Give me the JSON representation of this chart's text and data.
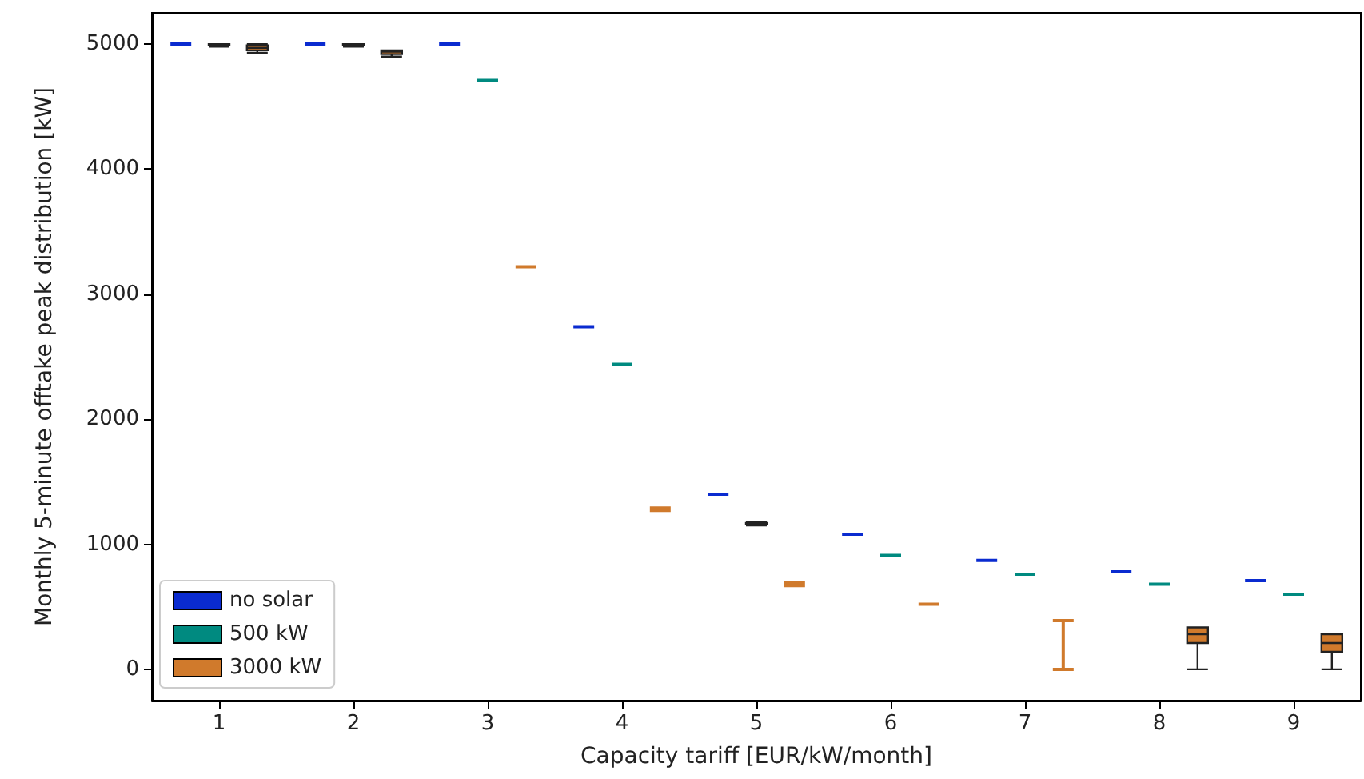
{
  "chart_data": {
    "type": "box",
    "xlabel": "Capacity tariff [EUR/kW/month]",
    "ylabel": "Monthly 5-minute offtake peak distribution [kW]",
    "categories": [
      "1",
      "2",
      "3",
      "4",
      "5",
      "6",
      "7",
      "8",
      "9"
    ],
    "ylim": [
      -250,
      5250
    ],
    "yticks": [
      0,
      1000,
      2000,
      3000,
      4000,
      5000
    ],
    "grid": false,
    "legend": "bottom left",
    "series": [
      {
        "name": "no solar",
        "color": "#0a2bd0",
        "boxes": [
          {
            "low": 5000,
            "q1": 5000,
            "median": 5000,
            "q3": 5000,
            "high": 5000
          },
          {
            "low": 5000,
            "q1": 5000,
            "median": 5000,
            "q3": 5000,
            "high": 5000
          },
          {
            "low": 5000,
            "q1": 5000,
            "median": 5000,
            "q3": 5000,
            "high": 5000
          },
          {
            "low": 2740,
            "q1": 2740,
            "median": 2740,
            "q3": 2740,
            "high": 2740
          },
          {
            "low": 1400,
            "q1": 1400,
            "median": 1400,
            "q3": 1400,
            "high": 1400
          },
          {
            "low": 1080,
            "q1": 1080,
            "median": 1080,
            "q3": 1080,
            "high": 1080
          },
          {
            "low": 870,
            "q1": 870,
            "median": 870,
            "q3": 870,
            "high": 870
          },
          {
            "low": 780,
            "q1": 780,
            "median": 780,
            "q3": 780,
            "high": 780
          },
          {
            "low": 710,
            "q1": 710,
            "median": 710,
            "q3": 710,
            "high": 710
          }
        ]
      },
      {
        "name": "500 kW",
        "color": "#008a80",
        "boxes": [
          {
            "low": 4980,
            "q1": 4990,
            "median": 5000,
            "q3": 5000,
            "high": 5000
          },
          {
            "low": 4980,
            "q1": 4990,
            "median": 5000,
            "q3": 5000,
            "high": 5000
          },
          {
            "low": 4710,
            "q1": 4710,
            "median": 4710,
            "q3": 4710,
            "high": 4710
          },
          {
            "low": 2440,
            "q1": 2440,
            "median": 2440,
            "q3": 2440,
            "high": 2440
          },
          {
            "low": 1150,
            "q1": 1160,
            "median": 1170,
            "q3": 1170,
            "high": 1180
          },
          {
            "low": 910,
            "q1": 910,
            "median": 910,
            "q3": 910,
            "high": 910
          },
          {
            "low": 760,
            "q1": 760,
            "median": 760,
            "q3": 760,
            "high": 760
          },
          {
            "low": 680,
            "q1": 680,
            "median": 680,
            "q3": 680,
            "high": 680
          },
          {
            "low": 600,
            "q1": 600,
            "median": 600,
            "q3": 600,
            "high": 600
          }
        ]
      },
      {
        "name": "3000 kW",
        "color": "#d07a2c",
        "boxes": [
          {
            "low": 4930,
            "q1": 4950,
            "median": 4970,
            "q3": 4990,
            "high": 5000
          },
          {
            "low": 4900,
            "q1": 4920,
            "median": 4940,
            "q3": 4950,
            "high": 4950
          },
          {
            "low": 3220,
            "q1": 3220,
            "median": 3220,
            "q3": 3220,
            "high": 3220
          },
          {
            "low": 1270,
            "q1": 1280,
            "median": 1280,
            "q3": 1280,
            "high": 1290
          },
          {
            "low": 670,
            "q1": 680,
            "median": 680,
            "q3": 680,
            "high": 690
          },
          {
            "low": 520,
            "q1": 520,
            "median": 520,
            "q3": 520,
            "high": 520
          },
          {
            "low": 0,
            "q1": 390,
            "median": 390,
            "q3": 390,
            "high": 390
          },
          {
            "low": 0,
            "q1": 210,
            "median": 280,
            "q3": 335,
            "high": 335
          },
          {
            "low": 0,
            "q1": 140,
            "median": 210,
            "q3": 280,
            "high": 280
          }
        ]
      }
    ]
  }
}
